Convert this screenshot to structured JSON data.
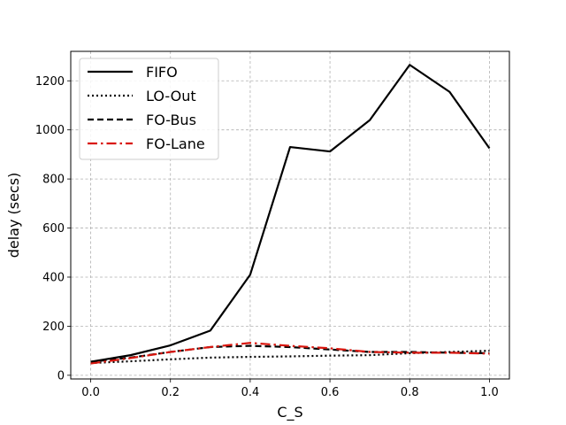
{
  "chart_data": {
    "type": "line",
    "title": "",
    "xlabel": "C_S",
    "ylabel": "delay (secs)",
    "xlim": [
      -0.05,
      1.05
    ],
    "ylim": [
      -15,
      1320
    ],
    "x_ticks": [
      0.0,
      0.2,
      0.4,
      0.6,
      0.8,
      1.0
    ],
    "x_tick_labels": [
      "0.0",
      "0.2",
      "0.4",
      "0.6",
      "0.8",
      "1.0"
    ],
    "y_ticks": [
      0,
      200,
      400,
      600,
      800,
      1000,
      1200
    ],
    "y_tick_labels": [
      "0",
      "200",
      "400",
      "600",
      "800",
      "1000",
      "1200"
    ],
    "grid": true,
    "legend_position": "upper-left",
    "x": [
      0.0,
      0.1,
      0.2,
      0.3,
      0.4,
      0.5,
      0.6,
      0.7,
      0.8,
      0.9,
      1.0
    ],
    "series": [
      {
        "name": "FIFO",
        "color": "#000000",
        "line_style": "solid",
        "values": [
          55,
          82,
          122,
          182,
          410,
          930,
          912,
          1040,
          1265,
          1155,
          925
        ]
      },
      {
        "name": "LO-Out",
        "color": "#000000",
        "line_style": "dotted",
        "values": [
          50,
          57,
          65,
          72,
          75,
          77,
          80,
          82,
          90,
          95,
          100
        ]
      },
      {
        "name": "FO-Bus",
        "color": "#000000",
        "line_style": "dashed",
        "values": [
          55,
          72,
          95,
          115,
          120,
          115,
          105,
          95,
          95,
          92,
          90
        ]
      },
      {
        "name": "FO-Lane",
        "color": "#d9160e",
        "line_style": "dashdot",
        "values": [
          48,
          70,
          95,
          115,
          132,
          120,
          110,
          95,
          92,
          92,
          88
        ]
      }
    ]
  }
}
